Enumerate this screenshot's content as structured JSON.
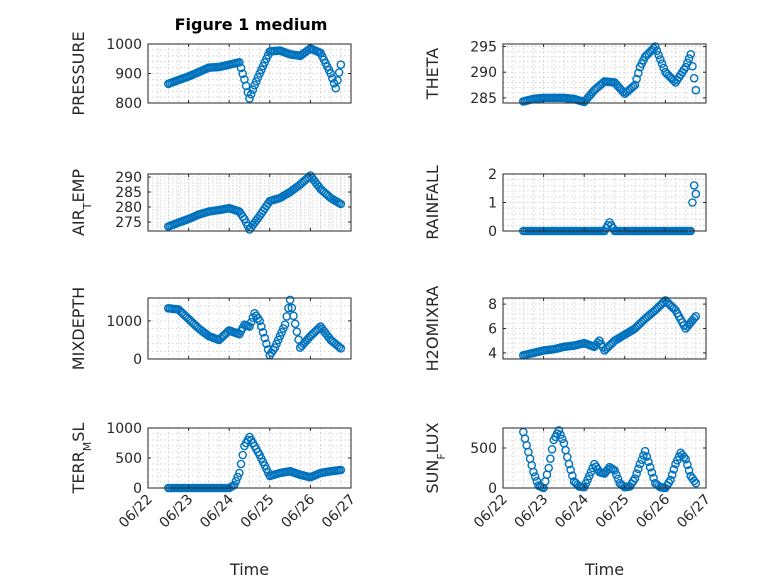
{
  "figure": {
    "title": "Figure 1 medium"
  },
  "colors": {
    "series": "#0072bd",
    "axis": "#262626",
    "grid": "#c8c8c8"
  },
  "chart_data": [
    {
      "type": "scatter",
      "ylabel": "PRESSURE",
      "xlabel": "",
      "ylim": [
        800,
        1000
      ],
      "yticks": [
        800,
        900,
        1000
      ],
      "xlim": [
        "06/22",
        "06/27"
      ],
      "grid": true,
      "show_xticklabels": false,
      "title": "Figure 1 medium",
      "x": [
        "06/22 12:00",
        "06/22 18:00",
        "06/23 00:00",
        "06/23 06:00",
        "06/23 12:00",
        "06/23 18:00",
        "06/24 00:00",
        "06/24 06:00",
        "06/24 09:00",
        "06/24 12:00",
        "06/24 15:00",
        "06/24 18:00",
        "06/25 00:00",
        "06/25 06:00",
        "06/25 12:00",
        "06/25 18:00",
        "06/26 00:00",
        "06/26 06:00",
        "06/26 12:00",
        "06/26 15:00",
        "06/26 18:00"
      ],
      "series": [
        {
          "values": [
            865,
            878,
            890,
            905,
            920,
            922,
            930,
            938,
            880,
            815,
            860,
            900,
            975,
            978,
            965,
            960,
            985,
            970,
            900,
            850,
            930
          ]
        }
      ]
    },
    {
      "type": "scatter",
      "ylabel": "THETA",
      "xlabel": "",
      "ylim": [
        284,
        295.5
      ],
      "yticks": [
        285,
        290,
        295
      ],
      "xlim": [
        "06/22",
        "06/27"
      ],
      "grid": true,
      "show_xticklabels": false,
      "x": [
        "06/22 12:00",
        "06/22 18:00",
        "06/23 00:00",
        "06/23 06:00",
        "06/23 12:00",
        "06/23 18:00",
        "06/24 00:00",
        "06/24 06:00",
        "06/24 12:00",
        "06/24 18:00",
        "06/25 00:00",
        "06/25 06:00",
        "06/25 09:00",
        "06/25 12:00",
        "06/25 18:00",
        "06/26 00:00",
        "06/26 06:00",
        "06/26 12:00",
        "06/26 15:00",
        "06/26 18:00"
      ],
      "series": [
        {
          "values": [
            284.3,
            284.8,
            285,
            285,
            285,
            284.8,
            284.2,
            286.5,
            288.2,
            288,
            285.8,
            287.5,
            291,
            293,
            295,
            290,
            288,
            291,
            293.5,
            286.5
          ]
        }
      ]
    },
    {
      "type": "scatter",
      "ylabel": "AIR_TEMP",
      "xlabel": "",
      "ylim": [
        272,
        291
      ],
      "yticks": [
        275,
        280,
        285,
        290
      ],
      "xlim": [
        "06/22",
        "06/27"
      ],
      "grid": true,
      "show_xticklabels": false,
      "x": [
        "06/22 12:00",
        "06/22 18:00",
        "06/23 00:00",
        "06/23 06:00",
        "06/23 12:00",
        "06/23 18:00",
        "06/24 00:00",
        "06/24 06:00",
        "06/24 09:00",
        "06/24 12:00",
        "06/24 18:00",
        "06/25 00:00",
        "06/25 06:00",
        "06/25 12:00",
        "06/25 18:00",
        "06/26 00:00",
        "06/26 06:00",
        "06/26 12:00",
        "06/26 18:00"
      ],
      "series": [
        {
          "values": [
            273.5,
            274.8,
            276,
            277.5,
            278.5,
            279,
            279.6,
            278.5,
            276,
            272.5,
            277,
            282,
            283,
            285,
            287.5,
            290.5,
            286,
            283,
            281
          ]
        }
      ]
    },
    {
      "type": "scatter",
      "ylabel": "RAINFALL",
      "xlabel": "",
      "ylim": [
        0,
        2
      ],
      "yticks": [
        0,
        1,
        2
      ],
      "xlim": [
        "06/22",
        "06/27"
      ],
      "grid": true,
      "show_xticklabels": false,
      "x": [
        "06/22 12:00",
        "06/23 00:00",
        "06/23 12:00",
        "06/24 00:00",
        "06/24 12:00",
        "06/24 15:00",
        "06/24 18:00",
        "06/25 00:00",
        "06/25 12:00",
        "06/26 00:00",
        "06/26 12:00",
        "06/26 15:00",
        "06/26 16:00",
        "06/26 17:00",
        "06/26 18:00"
      ],
      "series": [
        {
          "values": [
            0,
            0,
            0,
            0,
            0,
            0.3,
            0,
            0,
            0,
            0,
            0,
            0,
            1.0,
            1.6,
            1.3
          ]
        }
      ]
    },
    {
      "type": "scatter",
      "ylabel": "MIXDEPTH",
      "xlabel": "",
      "ylim": [
        0,
        1600
      ],
      "yticks": [
        0,
        1000
      ],
      "xlim": [
        "06/22",
        "06/27"
      ],
      "grid": true,
      "show_xticklabels": false,
      "x": [
        "06/22 12:00",
        "06/22 18:00",
        "06/23 00:00",
        "06/23 06:00",
        "06/23 12:00",
        "06/23 18:00",
        "06/24 00:00",
        "06/24 06:00",
        "06/24 09:00",
        "06/24 12:00",
        "06/24 15:00",
        "06/24 18:00",
        "06/25 00:00",
        "06/25 03:00",
        "06/25 06:00",
        "06/25 09:00",
        "06/25 12:00",
        "06/25 18:00",
        "06/26 00:00",
        "06/26 06:00",
        "06/26 12:00",
        "06/26 18:00"
      ],
      "series": [
        {
          "values": [
            1330,
            1300,
            1050,
            800,
            600,
            500,
            750,
            650,
            900,
            850,
            1200,
            1000,
            100,
            300,
            600,
            900,
            1550,
            300,
            600,
            850,
            500,
            280
          ]
        }
      ]
    },
    {
      "type": "scatter",
      "ylabel": "H2OMIXRA",
      "xlabel": "",
      "ylim": [
        3.5,
        8.5
      ],
      "yticks": [
        4,
        6,
        8
      ],
      "xlim": [
        "06/22",
        "06/27"
      ],
      "grid": true,
      "show_xticklabels": false,
      "x": [
        "06/22 12:00",
        "06/22 18:00",
        "06/23 00:00",
        "06/23 06:00",
        "06/23 12:00",
        "06/23 18:00",
        "06/24 00:00",
        "06/24 06:00",
        "06/24 09:00",
        "06/24 12:00",
        "06/24 18:00",
        "06/25 00:00",
        "06/25 06:00",
        "06/25 12:00",
        "06/25 18:00",
        "06/26 00:00",
        "06/26 06:00",
        "06/26 12:00",
        "06/26 18:00"
      ],
      "series": [
        {
          "values": [
            3.8,
            4.0,
            4.2,
            4.3,
            4.5,
            4.6,
            4.8,
            4.5,
            5.0,
            4.2,
            5.0,
            5.5,
            6.0,
            6.8,
            7.5,
            8.3,
            7.5,
            6.0,
            7.0
          ]
        }
      ]
    },
    {
      "type": "scatter",
      "ylabel": "TERR_MSL",
      "xlabel": "Time",
      "ylim": [
        0,
        1000
      ],
      "yticks": [
        0,
        500,
        1000
      ],
      "xlim": [
        "06/22",
        "06/27"
      ],
      "grid": true,
      "show_xticklabels": true,
      "x": [
        "06/22 12:00",
        "06/23 00:00",
        "06/23 12:00",
        "06/24 00:00",
        "06/24 03:00",
        "06/24 06:00",
        "06/24 09:00",
        "06/24 12:00",
        "06/24 18:00",
        "06/25 00:00",
        "06/25 06:00",
        "06/25 12:00",
        "06/25 18:00",
        "06/26 00:00",
        "06/26 06:00",
        "06/26 12:00",
        "06/26 18:00"
      ],
      "series": [
        {
          "values": [
            0,
            0,
            0,
            0,
            50,
            250,
            700,
            850,
            550,
            200,
            250,
            280,
            220,
            180,
            250,
            280,
            300
          ]
        }
      ]
    },
    {
      "type": "scatter",
      "ylabel": "SUN_FLUX",
      "xlabel": "Time",
      "ylim": [
        0,
        750
      ],
      "yticks": [
        0,
        500
      ],
      "xlim": [
        "06/22",
        "06/27"
      ],
      "grid": true,
      "show_xticklabels": true,
      "x": [
        "06/22 12:00",
        "06/22 15:00",
        "06/22 18:00",
        "06/22 21:00",
        "06/23 00:00",
        "06/23 03:00",
        "06/23 06:00",
        "06/23 09:00",
        "06/23 12:00",
        "06/23 15:00",
        "06/23 18:00",
        "06/23 21:00",
        "06/24 00:00",
        "06/24 03:00",
        "06/24 06:00",
        "06/24 09:00",
        "06/24 12:00",
        "06/24 15:00",
        "06/24 18:00",
        "06/24 21:00",
        "06/25 00:00",
        "06/25 03:00",
        "06/25 06:00",
        "06/25 09:00",
        "06/25 12:00",
        "06/25 15:00",
        "06/25 18:00",
        "06/25 21:00",
        "06/26 00:00",
        "06/26 03:00",
        "06/26 06:00",
        "06/26 09:00",
        "06/26 12:00",
        "06/26 15:00",
        "06/26 18:00"
      ],
      "series": [
        {
          "values": [
            700,
            450,
            200,
            30,
            0,
            250,
            600,
            720,
            560,
            300,
            80,
            20,
            10,
            150,
            300,
            200,
            180,
            260,
            220,
            60,
            10,
            20,
            120,
            300,
            460,
            260,
            60,
            10,
            0,
            100,
            300,
            440,
            360,
            150,
            60
          ]
        }
      ]
    }
  ],
  "xaxis": {
    "tick_labels": [
      "06/22",
      "06/23",
      "06/24",
      "06/25",
      "06/26",
      "06/27"
    ]
  }
}
